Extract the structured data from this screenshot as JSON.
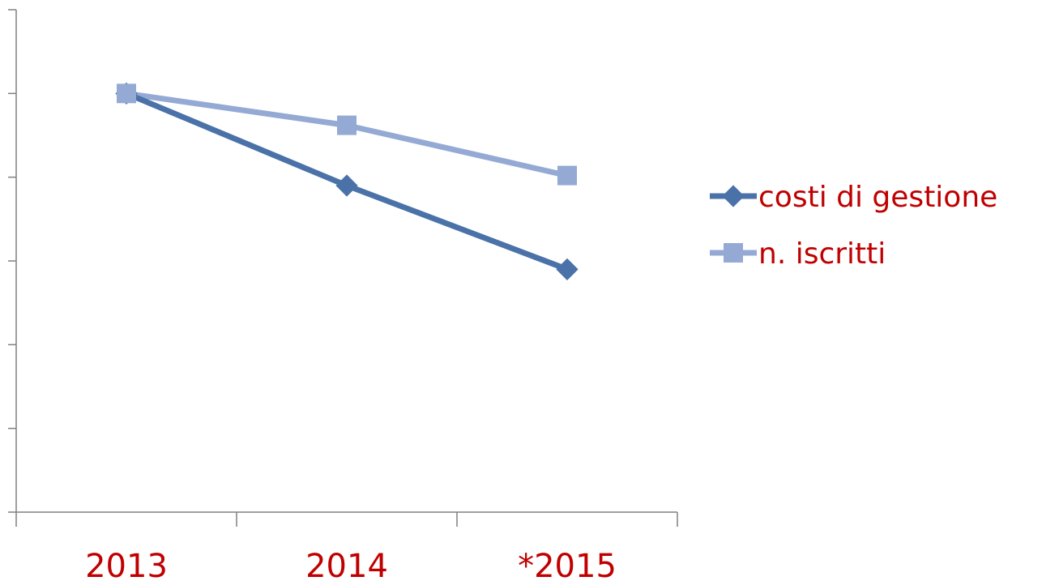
{
  "chart_data": {
    "type": "line",
    "title": "",
    "xlabel": "",
    "ylabel": "",
    "categories": [
      "2013",
      "2014",
      "*2015"
    ],
    "ylim": [
      0,
      6
    ],
    "y_tick_count": 7,
    "y_tick_labels_visible": false,
    "grid": false,
    "legend_position": "right",
    "series": [
      {
        "name": "costi di gestione",
        "values": [
          5.0,
          3.9,
          2.9
        ],
        "color": "#4a72a8",
        "marker": "diamond"
      },
      {
        "name": "n. iscritti",
        "values": [
          5.0,
          4.62,
          4.02
        ],
        "color": "#94aad4",
        "marker": "square"
      }
    ],
    "text_color": "#c00000",
    "axis_color": "#808080"
  }
}
